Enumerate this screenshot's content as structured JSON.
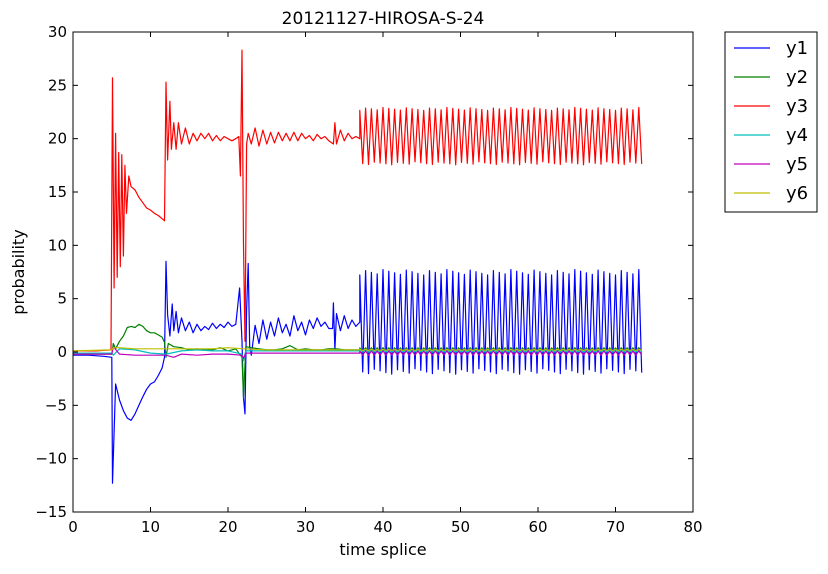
{
  "chart_data": {
    "type": "line",
    "title": "20121127-HIROSA-S-24",
    "xlabel": "time splice",
    "ylabel": "probability",
    "xlim": [
      0,
      80
    ],
    "ylim": [
      -15,
      30
    ],
    "xticks": [
      0,
      10,
      20,
      30,
      40,
      50,
      60,
      70,
      80
    ],
    "yticks": [
      -15,
      -10,
      -5,
      0,
      5,
      10,
      15,
      20,
      25,
      30
    ],
    "xtick_labels": [
      "0",
      "10",
      "20",
      "30",
      "40",
      "50",
      "60",
      "70",
      "80"
    ],
    "ytick_labels": [
      "−15",
      "−10",
      "−5",
      "0",
      "5",
      "10",
      "15",
      "20",
      "25",
      "30"
    ],
    "grid": false,
    "legend_position": "outside-right-top",
    "series": [
      {
        "name": "y1",
        "color": "#0000ff",
        "points": [
          [
            0,
            -0.3
          ],
          [
            2,
            -0.3
          ],
          [
            4,
            -0.4
          ],
          [
            5,
            -0.5
          ],
          [
            5.1,
            -12.3
          ],
          [
            5.3,
            -7.5
          ],
          [
            5.5,
            -3
          ],
          [
            6,
            -4.5
          ],
          [
            6.5,
            -5.5
          ],
          [
            7,
            -6.2
          ],
          [
            7.5,
            -6.4
          ],
          [
            8,
            -5.8
          ],
          [
            8.5,
            -5
          ],
          [
            9,
            -4.2
          ],
          [
            9.5,
            -3.5
          ],
          [
            10,
            -3
          ],
          [
            10.5,
            -2.8
          ],
          [
            11,
            -2.2
          ],
          [
            11.5,
            -1.5
          ],
          [
            11.8,
            -0.5
          ],
          [
            12,
            8.5
          ],
          [
            12.2,
            3.5
          ],
          [
            12.5,
            1.5
          ],
          [
            12.8,
            4.5
          ],
          [
            13,
            2
          ],
          [
            13.3,
            3.8
          ],
          [
            13.6,
            1.8
          ],
          [
            14,
            3.2
          ],
          [
            14.5,
            2
          ],
          [
            15,
            2.8
          ],
          [
            15.5,
            1.8
          ],
          [
            16,
            2.6
          ],
          [
            16.5,
            2
          ],
          [
            17,
            2.4
          ],
          [
            17.5,
            2.1
          ],
          [
            18,
            2.7
          ],
          [
            18.5,
            2.2
          ],
          [
            19,
            2.6
          ],
          [
            19.5,
            2.3
          ],
          [
            20,
            2.8
          ],
          [
            20.5,
            2.4
          ],
          [
            21,
            2.6
          ],
          [
            21.5,
            6
          ],
          [
            21.8,
            1
          ],
          [
            22,
            -4.3
          ],
          [
            22.2,
            -5.8
          ],
          [
            22.4,
            4
          ],
          [
            22.6,
            8.3
          ],
          [
            22.8,
            0.5
          ],
          [
            23,
            -0.3
          ],
          [
            23.5,
            2.5
          ],
          [
            24,
            0.8
          ],
          [
            24.5,
            3
          ],
          [
            25,
            1.2
          ],
          [
            25.5,
            2.8
          ],
          [
            26,
            1.5
          ],
          [
            26.5,
            3.2
          ],
          [
            27,
            1.8
          ],
          [
            27.5,
            2.6
          ],
          [
            28,
            1.5
          ],
          [
            28.5,
            3.4
          ],
          [
            29,
            2
          ],
          [
            29.5,
            2.8
          ],
          [
            30,
            1.6
          ],
          [
            30.5,
            3
          ],
          [
            31,
            2.2
          ],
          [
            31.5,
            3.2
          ],
          [
            32,
            2.4
          ],
          [
            32.5,
            2.8
          ],
          [
            33,
            2.2
          ],
          [
            33.5,
            2.2
          ],
          [
            33.6,
            4.6
          ],
          [
            33.8,
            0.2
          ],
          [
            34,
            3.6
          ],
          [
            34.5,
            2
          ],
          [
            35,
            3.4
          ],
          [
            35.5,
            2.2
          ],
          [
            36,
            3
          ],
          [
            36.5,
            2.4
          ],
          [
            37,
            2.8
          ]
        ],
        "osc": {
          "start": 37,
          "end": 73.5,
          "period": 0.75,
          "hi": 7.5,
          "lo": -1.8
        }
      },
      {
        "name": "y2",
        "color": "#008000",
        "points": [
          [
            0,
            -0.2
          ],
          [
            3,
            -0.2
          ],
          [
            5,
            -0.2
          ],
          [
            5.2,
            0.8
          ],
          [
            5.5,
            0.3
          ],
          [
            6,
            1
          ],
          [
            6.5,
            1.5
          ],
          [
            7,
            2.3
          ],
          [
            7.5,
            2.4
          ],
          [
            8,
            2.3
          ],
          [
            8.5,
            2.6
          ],
          [
            9,
            2.4
          ],
          [
            9.5,
            2
          ],
          [
            10,
            1.8
          ],
          [
            10.5,
            1.8
          ],
          [
            11,
            1.6
          ],
          [
            11.5,
            1.4
          ],
          [
            11.8,
            0.9
          ],
          [
            12,
            -0.5
          ],
          [
            12.3,
            0.8
          ],
          [
            13,
            0.5
          ],
          [
            14,
            0.4
          ],
          [
            15,
            0.2
          ],
          [
            16,
            0.3
          ],
          [
            17,
            0.2
          ],
          [
            18,
            0.2
          ],
          [
            19,
            0.4
          ],
          [
            20,
            0.1
          ],
          [
            21,
            0.3
          ],
          [
            21.8,
            -0.5
          ],
          [
            22,
            -4.3
          ],
          [
            22.3,
            0.5
          ],
          [
            23,
            0.4
          ],
          [
            24,
            0.3
          ],
          [
            25,
            0.2
          ],
          [
            26,
            0.2
          ],
          [
            27,
            0.3
          ],
          [
            28,
            0.6
          ],
          [
            29,
            0.2
          ],
          [
            30,
            0.3
          ],
          [
            31,
            0.2
          ],
          [
            32,
            0.2
          ],
          [
            33,
            0.3
          ],
          [
            34,
            0.3
          ],
          [
            35,
            0.2
          ],
          [
            37,
            0.2
          ]
        ],
        "osc": {
          "start": 37,
          "end": 73.5,
          "period": 0.75,
          "hi": 0.4,
          "lo": 0.0
        }
      },
      {
        "name": "y3",
        "color": "#ff0000",
        "points": [
          [
            0,
            0.1
          ],
          [
            3,
            0.1
          ],
          [
            4.9,
            0.2
          ],
          [
            5.1,
            25.7
          ],
          [
            5.3,
            6
          ],
          [
            5.5,
            20.5
          ],
          [
            5.7,
            7
          ],
          [
            5.9,
            18.7
          ],
          [
            6.1,
            8
          ],
          [
            6.3,
            18.5
          ],
          [
            6.5,
            9
          ],
          [
            6.7,
            17.5
          ],
          [
            6.9,
            13
          ],
          [
            7.2,
            16.5
          ],
          [
            7.5,
            15.5
          ],
          [
            8,
            15.2
          ],
          [
            8.5,
            14.5
          ],
          [
            9,
            14
          ],
          [
            9.5,
            13.5
          ],
          [
            10,
            13.3
          ],
          [
            10.5,
            13
          ],
          [
            11,
            12.8
          ],
          [
            11.5,
            12.5
          ],
          [
            11.8,
            12.3
          ],
          [
            12,
            25.3
          ],
          [
            12.2,
            18
          ],
          [
            12.5,
            23.5
          ],
          [
            12.7,
            19
          ],
          [
            13,
            21.5
          ],
          [
            13.3,
            19
          ],
          [
            13.6,
            21.5
          ],
          [
            14,
            19.5
          ],
          [
            14.5,
            21
          ],
          [
            15,
            19.5
          ],
          [
            15.5,
            20.5
          ],
          [
            16,
            19.8
          ],
          [
            16.5,
            20.5
          ],
          [
            17,
            20
          ],
          [
            17.5,
            20.5
          ],
          [
            18,
            19.8
          ],
          [
            18.5,
            20.3
          ],
          [
            19,
            19.8
          ],
          [
            19.5,
            20.2
          ],
          [
            20,
            20
          ],
          [
            20.5,
            19.8
          ],
          [
            21,
            20
          ],
          [
            21.4,
            20.2
          ],
          [
            21.6,
            16.5
          ],
          [
            21.8,
            28.3
          ],
          [
            22,
            10
          ],
          [
            22.2,
            1
          ],
          [
            22.4,
            19.5
          ],
          [
            22.6,
            20.5
          ],
          [
            23,
            19.5
          ],
          [
            23.5,
            21
          ],
          [
            24,
            19.3
          ],
          [
            24.5,
            20.8
          ],
          [
            25,
            19.5
          ],
          [
            25.5,
            20.6
          ],
          [
            26,
            19.6
          ],
          [
            26.5,
            20.6
          ],
          [
            27,
            19.8
          ],
          [
            27.5,
            20.5
          ],
          [
            28,
            19.8
          ],
          [
            28.5,
            20.6
          ],
          [
            29,
            19.8
          ],
          [
            29.5,
            20.5
          ],
          [
            30,
            20
          ],
          [
            30.5,
            20.3
          ],
          [
            31,
            19.8
          ],
          [
            31.5,
            20.4
          ],
          [
            32,
            20
          ],
          [
            32.5,
            20.2
          ],
          [
            33,
            19.8
          ],
          [
            33.6,
            19.5
          ],
          [
            33.8,
            21.5
          ],
          [
            34,
            19.5
          ],
          [
            34.5,
            20.8
          ],
          [
            35,
            19.8
          ],
          [
            35.5,
            20.5
          ],
          [
            36,
            20
          ],
          [
            36.5,
            20.2
          ],
          [
            37,
            20
          ]
        ],
        "osc": {
          "start": 37,
          "end": 73.5,
          "period": 0.75,
          "hi": 22.8,
          "lo": 17.7
        }
      },
      {
        "name": "y4",
        "color": "#00bfbf",
        "points": [
          [
            0,
            -0.1
          ],
          [
            5,
            -0.1
          ],
          [
            5.2,
            -0.3
          ],
          [
            6,
            0.3
          ],
          [
            8,
            0.2
          ],
          [
            10,
            -0.1
          ],
          [
            12,
            -0.2
          ],
          [
            14,
            0.1
          ],
          [
            16,
            0.2
          ],
          [
            18,
            0.1
          ],
          [
            20,
            0.1
          ],
          [
            21.8,
            -0.2
          ],
          [
            22,
            -0.8
          ],
          [
            22.3,
            0.1
          ],
          [
            25,
            0.1
          ],
          [
            30,
            0.1
          ],
          [
            37,
            0.1
          ]
        ],
        "osc": {
          "start": 37,
          "end": 73.5,
          "period": 0.75,
          "hi": 0.2,
          "lo": 0.0
        }
      },
      {
        "name": "y5",
        "color": "#bf00bf",
        "points": [
          [
            0,
            -0.2
          ],
          [
            5,
            -0.2
          ],
          [
            5.2,
            0.5
          ],
          [
            6,
            -0.2
          ],
          [
            8,
            -0.3
          ],
          [
            10,
            -0.3
          ],
          [
            12,
            -0.3
          ],
          [
            13,
            -0.5
          ],
          [
            14,
            -0.2
          ],
          [
            16,
            -0.3
          ],
          [
            18,
            -0.2
          ],
          [
            20,
            -0.2
          ],
          [
            21.8,
            -0.3
          ],
          [
            22,
            -0.6
          ],
          [
            22.3,
            -0.1
          ],
          [
            25,
            -0.1
          ],
          [
            30,
            -0.1
          ],
          [
            37,
            -0.1
          ]
        ],
        "osc": {
          "start": 37,
          "end": 73.5,
          "period": 0.75,
          "hi": 0.1,
          "lo": -0.3
        }
      },
      {
        "name": "y6",
        "color": "#bfbf00",
        "points": [
          [
            0,
            0.1
          ],
          [
            5,
            0.2
          ],
          [
            5.2,
            0.4
          ],
          [
            6,
            0.4
          ],
          [
            8,
            0.3
          ],
          [
            10,
            0.3
          ],
          [
            12,
            0.3
          ],
          [
            14,
            0.3
          ],
          [
            16,
            0.3
          ],
          [
            18,
            0.3
          ],
          [
            20,
            0.4
          ],
          [
            22,
            0.3
          ],
          [
            25,
            0.2
          ],
          [
            30,
            0.2
          ],
          [
            37,
            0.2
          ]
        ],
        "osc": {
          "start": 37,
          "end": 73.5,
          "period": 0.75,
          "hi": 0.25,
          "lo": 0.15
        }
      }
    ]
  }
}
